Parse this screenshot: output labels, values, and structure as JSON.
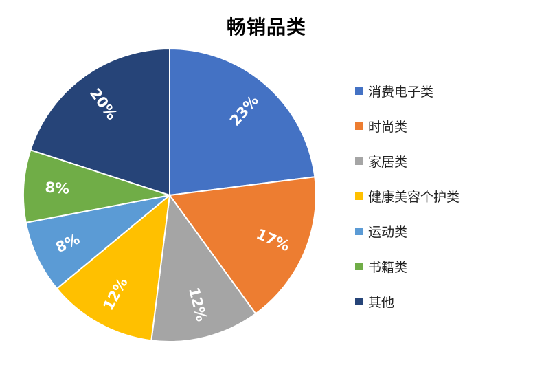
{
  "chart_data": {
    "type": "pie",
    "title": "畅销品类",
    "start_angle_deg": 0,
    "direction": "clockwise",
    "legend_position": "right",
    "slices": [
      {
        "label": "消费电子类",
        "value": 23,
        "display": "23%",
        "color": "#4472C4"
      },
      {
        "label": "时尚类",
        "value": 17,
        "display": "17%",
        "color": "#ED7D31"
      },
      {
        "label": "家居类",
        "value": 12,
        "display": "12%",
        "color": "#A5A5A5"
      },
      {
        "label": "健康美容个护类",
        "value": 12,
        "display": "12%",
        "color": "#FFC000"
      },
      {
        "label": "运动类",
        "value": 8,
        "display": "8%",
        "color": "#5B9BD5"
      },
      {
        "label": "书籍类",
        "value": 8,
        "display": "8%",
        "color": "#70AD47"
      },
      {
        "label": "其他",
        "value": 20,
        "display": "20%",
        "color": "#264478"
      }
    ]
  }
}
